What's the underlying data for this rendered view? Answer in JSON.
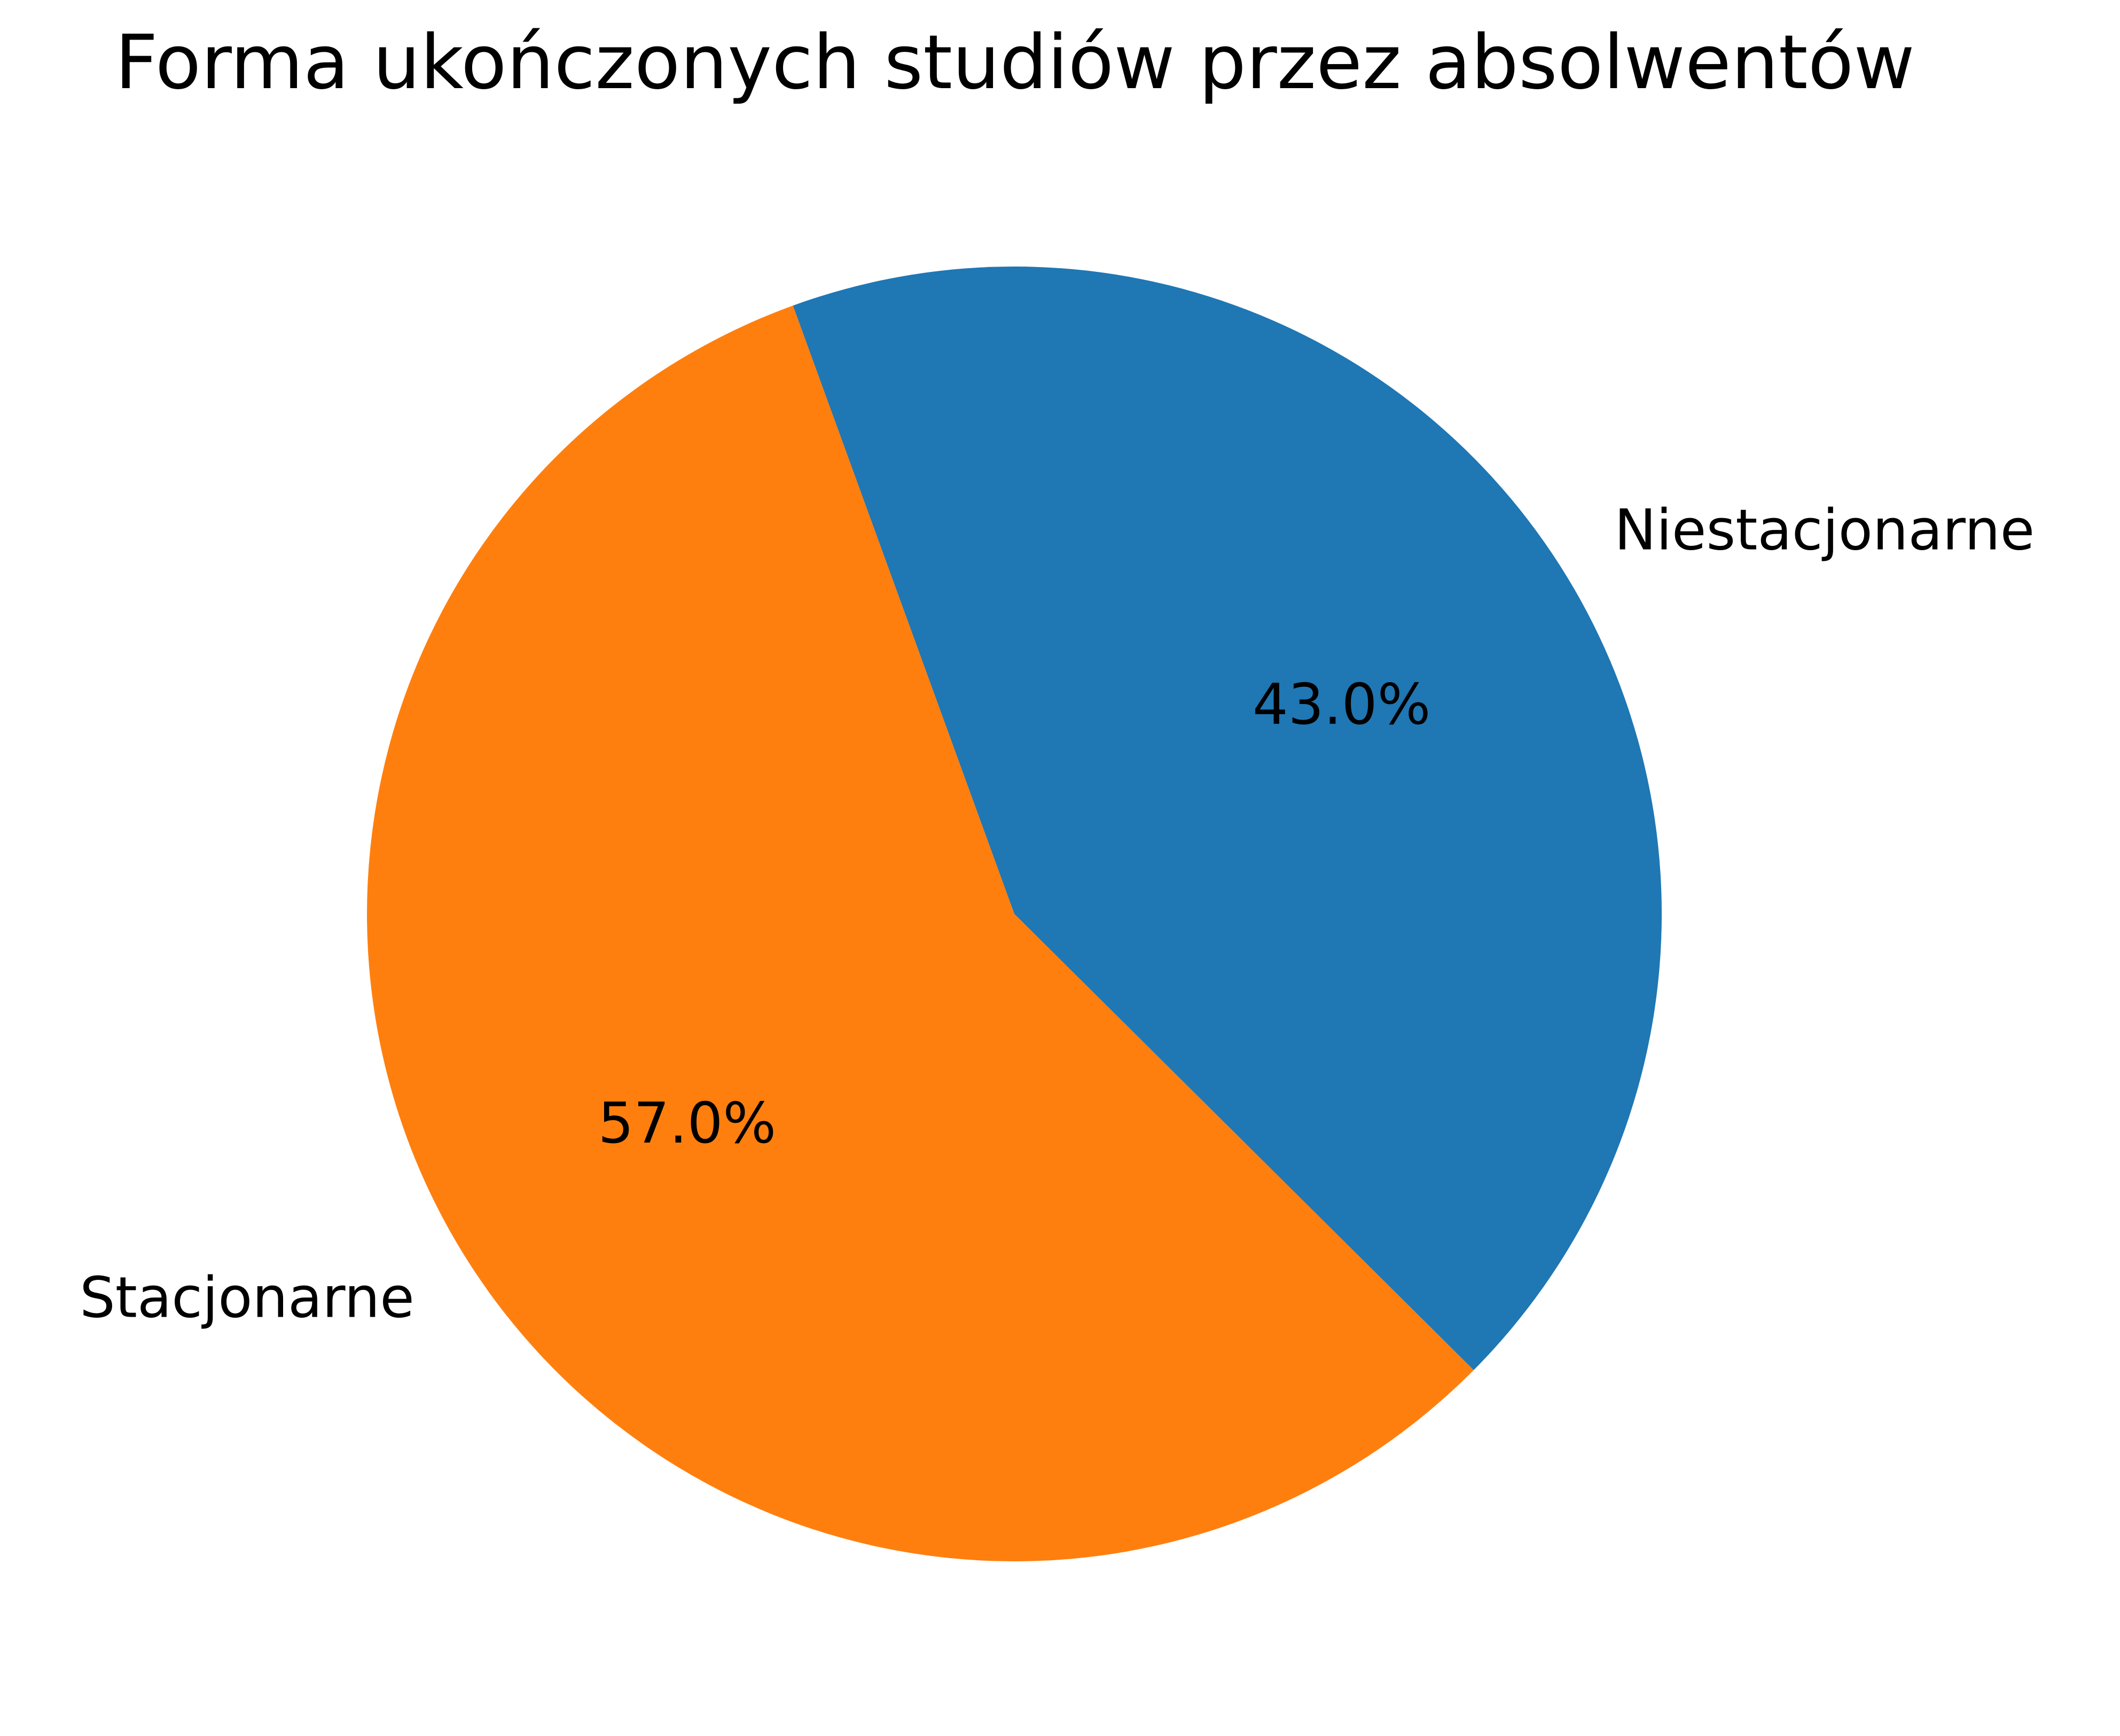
{
  "chart_data": {
    "type": "pie",
    "title": "Forma ukończonych studiów przez absolwentów",
    "slices": [
      {
        "label": "Niestacjonarne",
        "value": 43.0,
        "pct_label": "43.0%",
        "color": "#1f77b4"
      },
      {
        "label": "Stacjonarne",
        "value": 57.0,
        "pct_label": "57.0%",
        "color": "#ff7f0e"
      }
    ],
    "start_angle_deg": 110,
    "direction": "clockwise",
    "legend": "none"
  }
}
